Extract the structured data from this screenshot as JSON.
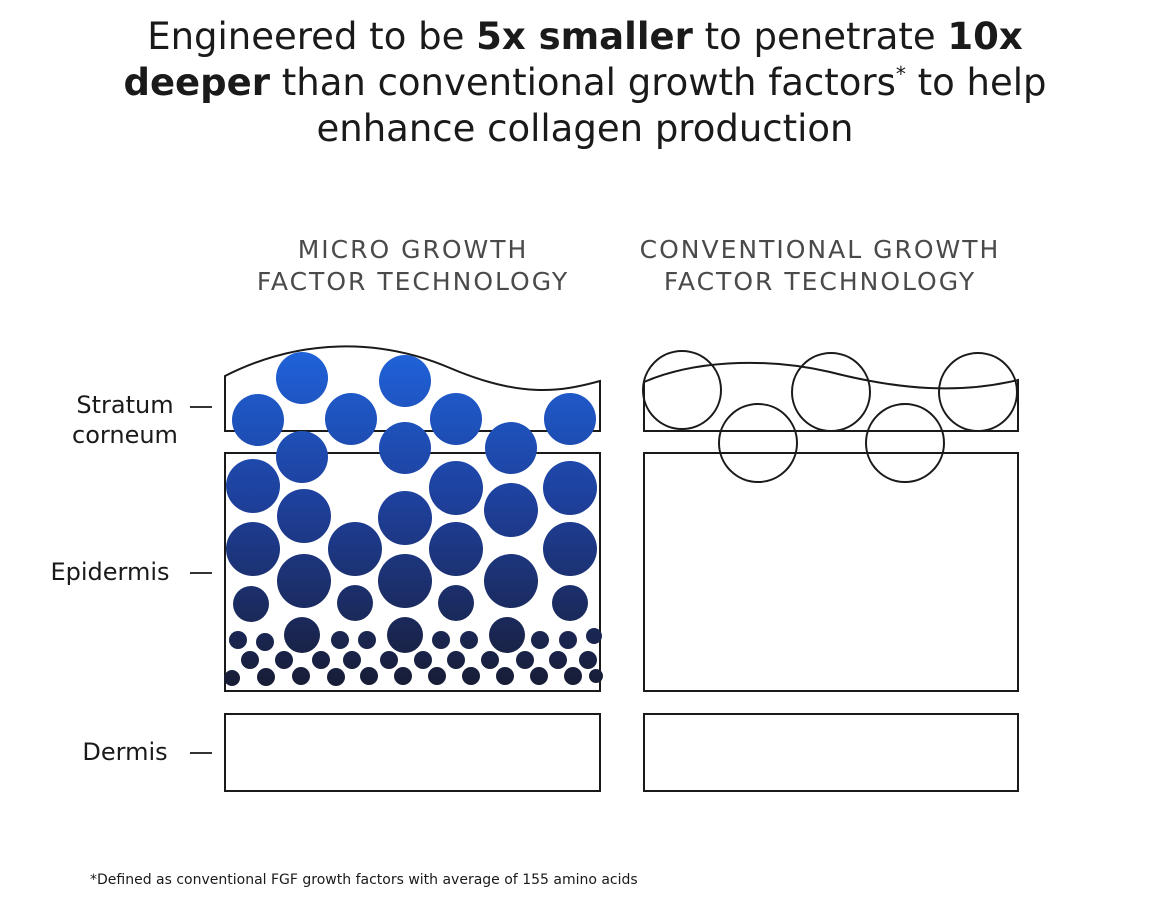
{
  "headline": {
    "part1": "Engineered to be ",
    "bold1": "5x smaller",
    "part2": " to penetrate ",
    "bold2": "10x deeper",
    "part3": " than conventional growth factors",
    "asterisk": "*",
    "part4": " to help enhance collagen production"
  },
  "columns": {
    "micro": {
      "line1": "MICRO GROWTH",
      "line2": "FACTOR TECHNOLOGY"
    },
    "conventional": {
      "line1": "CONVENTIONAL GROWTH",
      "line2": "FACTOR TECHNOLOGY"
    }
  },
  "layers": {
    "stratum_line1": "Stratum",
    "stratum_line2": "corneum",
    "epidermis": "Epidermis",
    "dermis": "Dermis"
  },
  "footnote": "*Defined as conventional FGF growth factors with average of 155 amino acids",
  "colors": {
    "particle_top": "#1f62d9",
    "particle_mid": "#1e3f9a",
    "particle_bottom": "#181c33",
    "outline": "#1a1a1a"
  }
}
